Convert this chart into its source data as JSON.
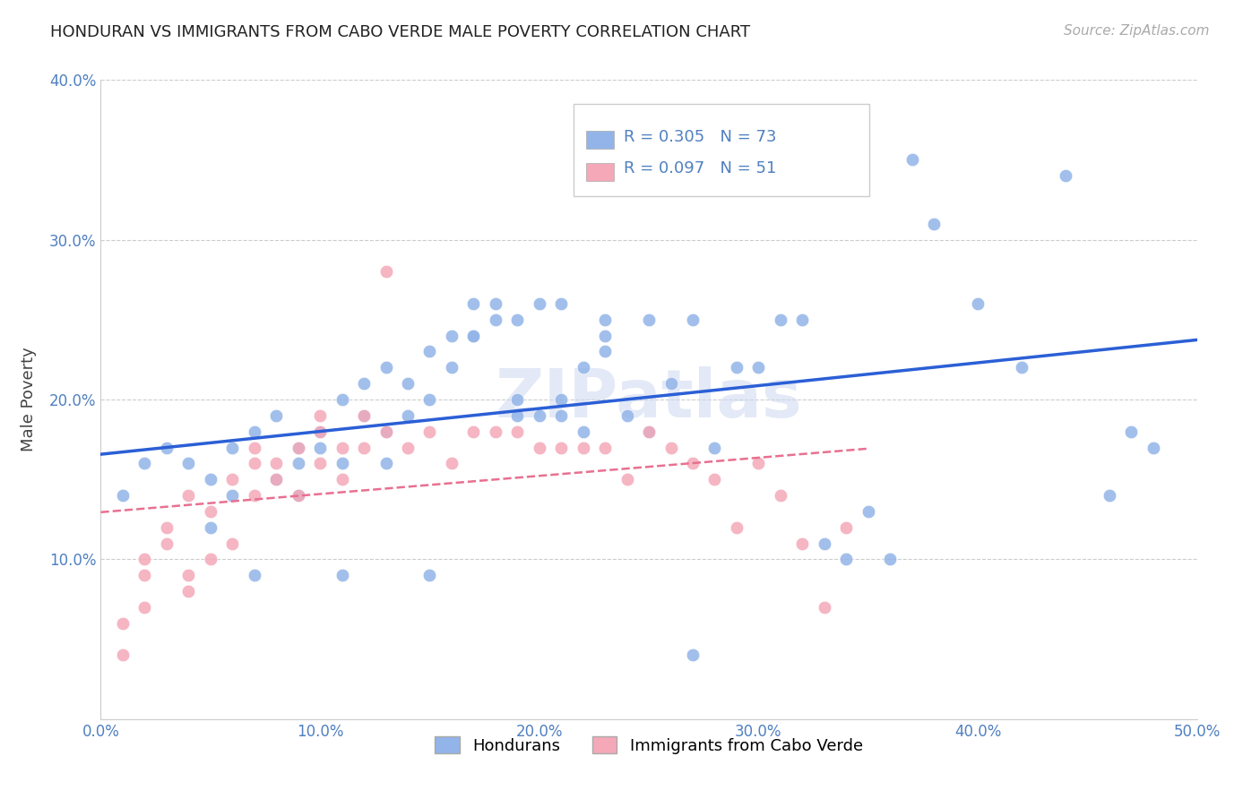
{
  "title": "HONDURAN VS IMMIGRANTS FROM CABO VERDE MALE POVERTY CORRELATION CHART",
  "source": "Source: ZipAtlas.com",
  "ylabel_label": "Male Poverty",
  "xlim": [
    0.0,
    0.5
  ],
  "ylim": [
    0.0,
    0.4
  ],
  "xticks": [
    0.0,
    0.1,
    0.2,
    0.3,
    0.4,
    0.5
  ],
  "xticklabels": [
    "0.0%",
    "10.0%",
    "20.0%",
    "30.0%",
    "40.0%",
    "50.0%"
  ],
  "yticks": [
    0.0,
    0.1,
    0.2,
    0.3,
    0.4
  ],
  "yticklabels": [
    "",
    "10.0%",
    "20.0%",
    "30.0%",
    "40.0%"
  ],
  "blue_R": "0.305",
  "blue_N": "73",
  "pink_R": "0.097",
  "pink_N": "51",
  "blue_color": "#92b4e8",
  "pink_color": "#f4a8b8",
  "blue_line_color": "#2b5fd6",
  "pink_line_color": "#e87090",
  "watermark": "ZIPatlas",
  "legend_label_blue": "Hondurans",
  "legend_label_pink": "Immigrants from Cabo Verde",
  "blue_scatter_x": [
    0.02,
    0.03,
    0.01,
    0.04,
    0.05,
    0.06,
    0.06,
    0.07,
    0.08,
    0.08,
    0.09,
    0.09,
    0.1,
    0.1,
    0.11,
    0.11,
    0.12,
    0.12,
    0.13,
    0.13,
    0.14,
    0.14,
    0.15,
    0.15,
    0.16,
    0.16,
    0.17,
    0.17,
    0.18,
    0.18,
    0.19,
    0.19,
    0.2,
    0.2,
    0.21,
    0.21,
    0.22,
    0.22,
    0.23,
    0.23,
    0.24,
    0.25,
    0.26,
    0.27,
    0.28,
    0.29,
    0.3,
    0.31,
    0.32,
    0.33,
    0.34,
    0.35,
    0.36,
    0.37,
    0.38,
    0.4,
    0.42,
    0.44,
    0.46,
    0.48,
    0.05,
    0.07,
    0.09,
    0.11,
    0.13,
    0.15,
    0.17,
    0.19,
    0.21,
    0.23,
    0.25,
    0.27,
    0.47
  ],
  "blue_scatter_y": [
    0.16,
    0.17,
    0.14,
    0.16,
    0.15,
    0.17,
    0.14,
    0.18,
    0.19,
    0.15,
    0.17,
    0.16,
    0.18,
    0.17,
    0.2,
    0.16,
    0.19,
    0.21,
    0.22,
    0.18,
    0.21,
    0.19,
    0.23,
    0.2,
    0.24,
    0.22,
    0.24,
    0.26,
    0.26,
    0.25,
    0.2,
    0.19,
    0.26,
    0.19,
    0.26,
    0.2,
    0.18,
    0.22,
    0.25,
    0.23,
    0.19,
    0.18,
    0.21,
    0.25,
    0.17,
    0.22,
    0.22,
    0.25,
    0.25,
    0.11,
    0.1,
    0.13,
    0.1,
    0.35,
    0.31,
    0.26,
    0.22,
    0.34,
    0.14,
    0.17,
    0.12,
    0.09,
    0.14,
    0.09,
    0.16,
    0.09,
    0.24,
    0.25,
    0.19,
    0.24,
    0.25,
    0.04,
    0.18
  ],
  "pink_scatter_x": [
    0.01,
    0.01,
    0.02,
    0.02,
    0.02,
    0.03,
    0.03,
    0.04,
    0.04,
    0.04,
    0.05,
    0.05,
    0.06,
    0.06,
    0.07,
    0.07,
    0.07,
    0.08,
    0.08,
    0.09,
    0.09,
    0.1,
    0.1,
    0.1,
    0.11,
    0.11,
    0.12,
    0.12,
    0.13,
    0.14,
    0.15,
    0.16,
    0.17,
    0.18,
    0.19,
    0.2,
    0.21,
    0.22,
    0.23,
    0.24,
    0.25,
    0.26,
    0.27,
    0.28,
    0.29,
    0.3,
    0.31,
    0.32,
    0.33,
    0.34,
    0.13
  ],
  "pink_scatter_y": [
    0.04,
    0.06,
    0.1,
    0.09,
    0.07,
    0.11,
    0.12,
    0.14,
    0.09,
    0.08,
    0.13,
    0.1,
    0.15,
    0.11,
    0.16,
    0.14,
    0.17,
    0.16,
    0.15,
    0.17,
    0.14,
    0.18,
    0.16,
    0.19,
    0.17,
    0.15,
    0.19,
    0.17,
    0.18,
    0.17,
    0.18,
    0.16,
    0.18,
    0.18,
    0.18,
    0.17,
    0.17,
    0.17,
    0.17,
    0.15,
    0.18,
    0.17,
    0.16,
    0.15,
    0.12,
    0.16,
    0.14,
    0.11,
    0.07,
    0.12,
    0.28
  ]
}
